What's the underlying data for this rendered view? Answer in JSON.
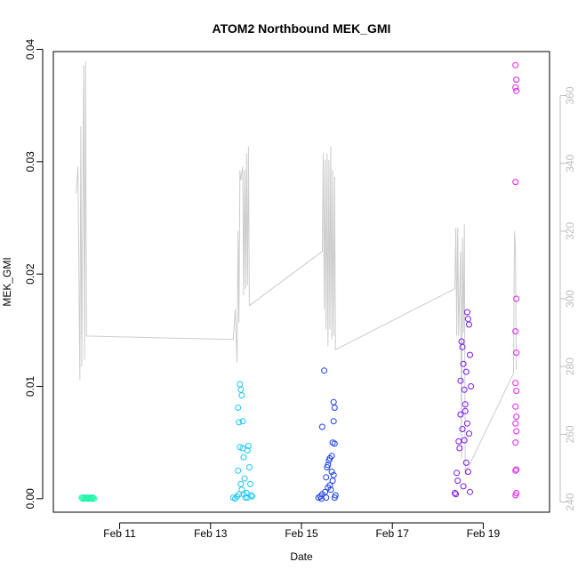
{
  "chart_data": {
    "type": "scatter",
    "title": "ATOM2 Northbound MEK_GMI",
    "xlabel": "Date",
    "ylabel": "MEK_GMI",
    "xlim": [
      "2024-02-09T13:00",
      "2024-02-20T11:00"
    ],
    "ylim": [
      -0.0012,
      0.0398
    ],
    "y_ticks": [
      "0.00",
      "0.01",
      "0.02",
      "0.03",
      "0.04"
    ],
    "y_tick_values": [
      0,
      0.01,
      0.02,
      0.03,
      0.04
    ],
    "x_ticks": [
      {
        "label": "Feb 11",
        "date": "2024-02-11"
      },
      {
        "label": "Feb 13",
        "date": "2024-02-13"
      },
      {
        "label": "Feb 15",
        "date": "2024-02-15"
      },
      {
        "label": "Feb 17",
        "date": "2024-02-17"
      },
      {
        "label": "Feb 19",
        "date": "2024-02-19"
      }
    ],
    "y2_ticks": [
      "240",
      "260",
      "280",
      "300",
      "320",
      "340",
      "360"
    ],
    "y2_tick_values": [
      240,
      260,
      280,
      300,
      320,
      340,
      360
    ],
    "y2lim": [
      237,
      373
    ],
    "grid": false,
    "series": [
      {
        "color": "#1DF5A8",
        "marker": "open-circle",
        "points": [
          [
            "2024-02-10T04:00",
            0.0001
          ],
          [
            "2024-02-10T04:30",
            0.0
          ],
          [
            "2024-02-10T05:00",
            0.0001
          ],
          [
            "2024-02-10T05:30",
            0.0
          ],
          [
            "2024-02-10T06:00",
            0.0001
          ],
          [
            "2024-02-10T06:30",
            0.0
          ],
          [
            "2024-02-10T07:00",
            0.0001
          ],
          [
            "2024-02-10T07:30",
            0.0
          ],
          [
            "2024-02-10T08:00",
            0.0001
          ],
          [
            "2024-02-10T08:30",
            0.0
          ],
          [
            "2024-02-10T09:00",
            0.0001
          ],
          [
            "2024-02-10T09:30",
            0.0
          ],
          [
            "2024-02-10T10:00",
            0.0001
          ],
          [
            "2024-02-10T10:30",
            0.0
          ]
        ]
      },
      {
        "color": "#19C8F0",
        "marker": "open-circle",
        "points": [
          [
            "2024-02-13T12:00",
            0.0001
          ],
          [
            "2024-02-13T13:00",
            0.0
          ],
          [
            "2024-02-13T14:00",
            0.0002
          ],
          [
            "2024-02-13T15:00",
            0.0004
          ],
          [
            "2024-02-13T15:30",
            0.0102
          ],
          [
            "2024-02-13T16:00",
            0.0097
          ],
          [
            "2024-02-13T16:30",
            0.0092
          ],
          [
            "2024-02-13T14:30",
            0.0081
          ],
          [
            "2024-02-13T15:00",
            0.0068
          ],
          [
            "2024-02-13T17:00",
            0.0069
          ],
          [
            "2024-02-13T15:30",
            0.0046
          ],
          [
            "2024-02-13T17:00",
            0.0045
          ],
          [
            "2024-02-13T17:30",
            0.0037
          ],
          [
            "2024-02-13T14:30",
            0.0025
          ],
          [
            "2024-02-13T18:00",
            0.0018
          ],
          [
            "2024-02-13T16:00",
            0.0013
          ],
          [
            "2024-02-13T16:30",
            0.0008
          ],
          [
            "2024-02-13T17:30",
            0.0004
          ],
          [
            "2024-02-13T19:00",
            0.0005
          ],
          [
            "2024-02-13T19:30",
            0.0043
          ],
          [
            "2024-02-13T20:00",
            0.0047
          ],
          [
            "2024-02-13T20:30",
            0.0028
          ],
          [
            "2024-02-13T21:00",
            0.0013
          ],
          [
            "2024-02-13T21:30",
            0.0003
          ],
          [
            "2024-02-13T22:00",
            0.0002
          ],
          [
            "2024-02-13T18:30",
            0.0001
          ],
          [
            "2024-02-13T19:30",
            0.0001
          ]
        ]
      },
      {
        "color": "#1A3FE6",
        "marker": "open-circle",
        "points": [
          [
            "2024-02-15T09:00",
            0.0001
          ],
          [
            "2024-02-15T10:00",
            0.0002
          ],
          [
            "2024-02-15T11:00",
            0.0004
          ],
          [
            "2024-02-15T12:00",
            0.0114
          ],
          [
            "2024-02-15T11:00",
            0.0064
          ],
          [
            "2024-02-15T13:00",
            0.0019
          ],
          [
            "2024-02-15T14:00",
            0.003
          ],
          [
            "2024-02-15T14:30",
            0.0034
          ],
          [
            "2024-02-15T15:00",
            0.0036
          ],
          [
            "2024-02-15T13:30",
            0.0028
          ],
          [
            "2024-02-15T16:00",
            0.0024
          ],
          [
            "2024-02-15T16:30",
            0.0016
          ],
          [
            "2024-02-15T17:00",
            0.0086
          ],
          [
            "2024-02-15T17:30",
            0.0081
          ],
          [
            "2024-02-15T17:00",
            0.0069
          ],
          [
            "2024-02-15T16:30",
            0.005
          ],
          [
            "2024-02-15T17:30",
            0.0049
          ],
          [
            "2024-02-15T16:00",
            0.0038
          ],
          [
            "2024-02-15T17:00",
            0.0021
          ],
          [
            "2024-02-15T15:00",
            0.0012
          ],
          [
            "2024-02-15T15:30",
            0.0008
          ],
          [
            "2024-02-15T12:30",
            0.0006
          ],
          [
            "2024-02-15T14:00",
            0.001
          ],
          [
            "2024-02-15T18:00",
            0.0003
          ],
          [
            "2024-02-15T17:30",
            0.0001
          ],
          [
            "2024-02-15T10:30",
            0.0
          ],
          [
            "2024-02-15T13:00",
            0.0001
          ]
        ]
      },
      {
        "color": "#7A18EE",
        "marker": "open-circle",
        "points": [
          [
            "2024-02-18T09:00",
            0.0005
          ],
          [
            "2024-02-18T10:00",
            0.0023
          ],
          [
            "2024-02-18T11:00",
            0.0051
          ],
          [
            "2024-02-18T12:00",
            0.0105
          ],
          [
            "2024-02-18T12:30",
            0.014
          ],
          [
            "2024-02-18T13:00",
            0.0135
          ],
          [
            "2024-02-18T13:30",
            0.012
          ],
          [
            "2024-02-18T14:00",
            0.0097
          ],
          [
            "2024-02-18T14:30",
            0.0084
          ],
          [
            "2024-02-18T15:00",
            0.0113
          ],
          [
            "2024-02-18T15:30",
            0.0166
          ],
          [
            "2024-02-18T16:00",
            0.016
          ],
          [
            "2024-02-18T16:30",
            0.0155
          ],
          [
            "2024-02-18T17:00",
            0.0128
          ],
          [
            "2024-02-18T17:30",
            0.01
          ],
          [
            "2024-02-18T12:00",
            0.0075
          ],
          [
            "2024-02-18T13:00",
            0.0062
          ],
          [
            "2024-02-18T14:00",
            0.0052
          ],
          [
            "2024-02-18T11:30",
            0.0045
          ],
          [
            "2024-02-18T15:00",
            0.0032
          ],
          [
            "2024-02-18T16:00",
            0.0024
          ],
          [
            "2024-02-18T10:30",
            0.0016
          ],
          [
            "2024-02-18T13:30",
            0.0011
          ],
          [
            "2024-02-18T17:00",
            0.0006
          ],
          [
            "2024-02-18T09:30",
            0.0004
          ],
          [
            "2024-02-18T14:30",
            0.0078
          ],
          [
            "2024-02-18T15:30",
            0.0067
          ],
          [
            "2024-02-18T16:30",
            0.0058
          ]
        ]
      },
      {
        "color": "#DF20F0",
        "marker": "open-circle",
        "points": [
          [
            "2024-02-19T17:00",
            0.0386
          ],
          [
            "2024-02-19T17:30",
            0.0373
          ],
          [
            "2024-02-19T17:00",
            0.0366
          ],
          [
            "2024-02-19T17:30",
            0.0363
          ],
          [
            "2024-02-19T17:00",
            0.0282
          ],
          [
            "2024-02-19T17:30",
            0.0178
          ],
          [
            "2024-02-19T17:00",
            0.0149
          ],
          [
            "2024-02-19T17:30",
            0.013
          ],
          [
            "2024-02-19T17:00",
            0.0103
          ],
          [
            "2024-02-19T17:30",
            0.0096
          ],
          [
            "2024-02-19T17:00",
            0.0082
          ],
          [
            "2024-02-19T17:30",
            0.0073
          ],
          [
            "2024-02-19T17:00",
            0.0067
          ],
          [
            "2024-02-19T17:30",
            0.006
          ],
          [
            "2024-02-19T17:00",
            0.005
          ],
          [
            "2024-02-19T17:30",
            0.0026
          ],
          [
            "2024-02-19T17:00",
            0.0025
          ],
          [
            "2024-02-19T17:30",
            0.0005
          ],
          [
            "2024-02-19T17:00",
            0.0003
          ]
        ]
      }
    ],
    "line_series": {
      "axis": "right",
      "color": "#cccccc",
      "points": [
        [
          "2024-02-10T01:00",
          331
        ],
        [
          "2024-02-10T02:00",
          339
        ],
        [
          "2024-02-10T03:00",
          276
        ],
        [
          "2024-02-10T03:30",
          351
        ],
        [
          "2024-02-10T04:00",
          280
        ],
        [
          "2024-02-10T05:00",
          369
        ],
        [
          "2024-02-10T05:30",
          282
        ],
        [
          "2024-02-10T06:00",
          370
        ],
        [
          "2024-02-10T06:30",
          289
        ],
        [
          "2024-02-13T12:00",
          288
        ],
        [
          "2024-02-13T13:00",
          297
        ],
        [
          "2024-02-13T14:00",
          281
        ],
        [
          "2024-02-13T14:30",
          320
        ],
        [
          "2024-02-13T15:00",
          293
        ],
        [
          "2024-02-13T15:30",
          338
        ],
        [
          "2024-02-13T16:00",
          335
        ],
        [
          "2024-02-13T17:00",
          339
        ],
        [
          "2024-02-13T17:30",
          301
        ],
        [
          "2024-02-13T18:00",
          338
        ],
        [
          "2024-02-13T18:30",
          303
        ],
        [
          "2024-02-13T19:00",
          343
        ],
        [
          "2024-02-13T19:30",
          304
        ],
        [
          "2024-02-13T20:00",
          345
        ],
        [
          "2024-02-13T20:30",
          298
        ],
        [
          "2024-02-15T11:00",
          314
        ],
        [
          "2024-02-15T11:30",
          343
        ],
        [
          "2024-02-15T12:00",
          297
        ],
        [
          "2024-02-15T12:30",
          341
        ],
        [
          "2024-02-15T13:00",
          291
        ],
        [
          "2024-02-15T13:30",
          343
        ],
        [
          "2024-02-15T14:00",
          286
        ],
        [
          "2024-02-15T14:30",
          341
        ],
        [
          "2024-02-15T15:00",
          291
        ],
        [
          "2024-02-15T15:30",
          345
        ],
        [
          "2024-02-15T16:00",
          288
        ],
        [
          "2024-02-15T16:30",
          338
        ],
        [
          "2024-02-15T17:00",
          289
        ],
        [
          "2024-02-15T17:30",
          336
        ],
        [
          "2024-02-15T18:00",
          285
        ],
        [
          "2024-02-18T09:00",
          303
        ],
        [
          "2024-02-18T09:30",
          321
        ],
        [
          "2024-02-18T10:00",
          289
        ],
        [
          "2024-02-18T10:30",
          321
        ],
        [
          "2024-02-18T11:00",
          289
        ],
        [
          "2024-02-18T12:00",
          314
        ],
        [
          "2024-02-18T12:30",
          253
        ],
        [
          "2024-02-18T13:00",
          318
        ],
        [
          "2024-02-18T13:30",
          290
        ],
        [
          "2024-02-18T14:00",
          322
        ],
        [
          "2024-02-18T14:30",
          248
        ],
        [
          "2024-02-18T15:00",
          249
        ],
        [
          "2024-02-19T16:00",
          278
        ],
        [
          "2024-02-19T16:30",
          320
        ],
        [
          "2024-02-19T17:00",
          314
        ],
        [
          "2024-02-19T17:30",
          279
        ]
      ]
    }
  }
}
